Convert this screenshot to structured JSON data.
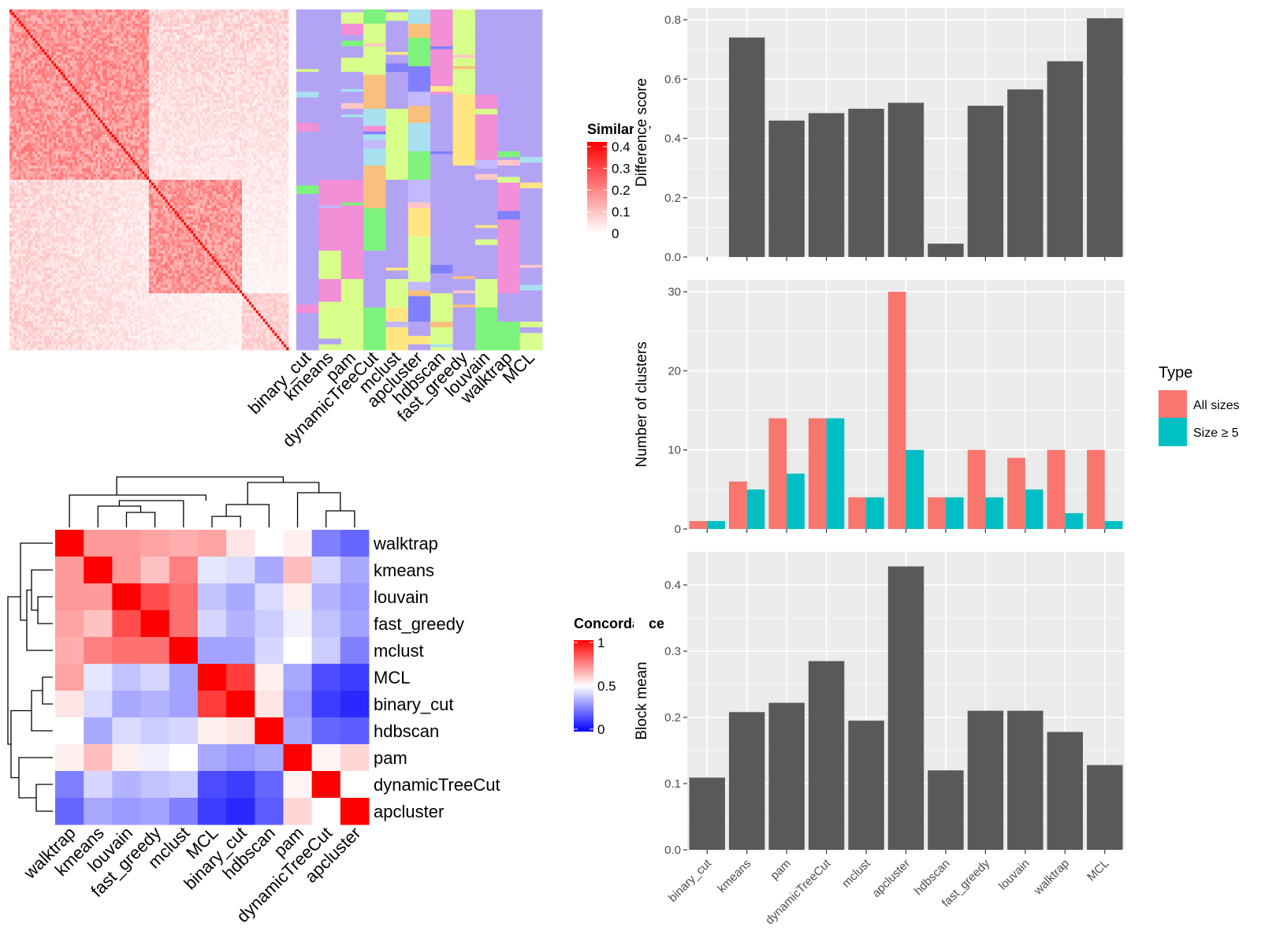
{
  "colors": {
    "sim_high": "#ff0000",
    "sim_low": "#ffffff",
    "conc_high": "#ff0000",
    "conc_mid": "#ffffff",
    "conc_low": "#0000ff",
    "bar": "#595959",
    "panel_bg": "#ebebeb",
    "grid": "#ffffff",
    "type_all": "#f8766d",
    "type_size5": "#00bfc4",
    "class_palette": [
      "#b3a3f5",
      "#f28fd7",
      "#d8ff8c",
      "#7df27d",
      "#f7c07c",
      "#a8e0f0",
      "#8080ff",
      "#ffe680",
      "#c4b8ff",
      "#ffc6c6"
    ]
  },
  "similarity_heatmap": {
    "legend_title": "Similarity",
    "legend_ticks": [
      "0",
      "0.1",
      "0.2",
      "0.3",
      "0.4"
    ],
    "method_labels": [
      "binary_cut",
      "kmeans",
      "pam",
      "dynamicTreeCut",
      "mclust",
      "apcluster",
      "hdbscan",
      "fast_greedy",
      "louvain",
      "walktrap",
      "MCL"
    ]
  },
  "concordance_heatmap": {
    "legend_title": "Concordance",
    "legend_ticks": [
      "0",
      "0.5",
      "1"
    ],
    "rows": [
      "walktrap",
      "kmeans",
      "louvain",
      "fast_greedy",
      "mclust",
      "MCL",
      "binary_cut",
      "hdbscan",
      "pam",
      "dynamicTreeCut",
      "apcluster"
    ],
    "cols": [
      "walktrap",
      "kmeans",
      "louvain",
      "fast_greedy",
      "mclust",
      "MCL",
      "binary_cut",
      "hdbscan",
      "pam",
      "dynamicTreeCut",
      "apcluster"
    ],
    "values": [
      [
        1.0,
        0.7,
        0.7,
        0.68,
        0.66,
        0.68,
        0.55,
        0.5,
        0.53,
        0.25,
        0.2
      ],
      [
        0.7,
        1.0,
        0.7,
        0.62,
        0.75,
        0.45,
        0.43,
        0.33,
        0.63,
        0.42,
        0.33
      ],
      [
        0.7,
        0.7,
        1.0,
        0.85,
        0.78,
        0.38,
        0.33,
        0.43,
        0.53,
        0.35,
        0.3
      ],
      [
        0.68,
        0.62,
        0.85,
        1.0,
        0.78,
        0.42,
        0.35,
        0.4,
        0.47,
        0.38,
        0.32
      ],
      [
        0.66,
        0.75,
        0.78,
        0.78,
        1.0,
        0.32,
        0.32,
        0.42,
        0.5,
        0.4,
        0.25
      ],
      [
        0.68,
        0.45,
        0.38,
        0.42,
        0.32,
        1.0,
        0.88,
        0.53,
        0.33,
        0.15,
        0.12
      ],
      [
        0.55,
        0.43,
        0.33,
        0.35,
        0.32,
        0.88,
        1.0,
        0.55,
        0.3,
        0.12,
        0.08
      ],
      [
        0.5,
        0.33,
        0.43,
        0.4,
        0.42,
        0.53,
        0.55,
        1.0,
        0.33,
        0.2,
        0.18
      ],
      [
        0.53,
        0.63,
        0.53,
        0.47,
        0.5,
        0.33,
        0.3,
        0.33,
        1.0,
        0.52,
        0.58
      ],
      [
        0.25,
        0.42,
        0.35,
        0.38,
        0.4,
        0.15,
        0.12,
        0.2,
        0.52,
        1.0,
        0.5
      ],
      [
        0.2,
        0.33,
        0.3,
        0.32,
        0.25,
        0.12,
        0.08,
        0.18,
        0.58,
        0.5,
        1.0
      ]
    ]
  },
  "chart_data": [
    {
      "type": "bar",
      "categories": [
        "binary_cut",
        "kmeans",
        "pam",
        "dynamicTreeCut",
        "mclust",
        "apcluster",
        "hdbscan",
        "fast_greedy",
        "louvain",
        "walktrap",
        "MCL"
      ],
      "values": [
        0.0,
        0.74,
        0.46,
        0.485,
        0.5,
        0.52,
        0.045,
        0.51,
        0.565,
        0.66,
        0.805
      ],
      "xlabel": "",
      "ylabel": "Difference score",
      "ylim": [
        0,
        0.84
      ],
      "yticks": [
        "0.0",
        "0.2",
        "0.4",
        "0.6",
        "0.8"
      ],
      "grid": true
    },
    {
      "type": "bar",
      "categories": [
        "binary_cut",
        "kmeans",
        "pam",
        "dynamicTreeCut",
        "mclust",
        "apcluster",
        "hdbscan",
        "fast_greedy",
        "louvain",
        "walktrap",
        "MCL"
      ],
      "series": [
        {
          "name": "All sizes",
          "values": [
            1,
            6,
            14,
            14,
            4,
            30,
            4,
            10,
            9,
            10,
            10
          ]
        },
        {
          "name": "Size ≥ 5",
          "values": [
            1,
            5,
            7,
            14,
            4,
            10,
            4,
            4,
            5,
            2,
            1
          ]
        }
      ],
      "xlabel": "",
      "ylabel": "Number of clusters",
      "ylim": [
        0,
        31.5
      ],
      "yticks": [
        "0",
        "10",
        "20",
        "30"
      ],
      "legend_title": "Type",
      "legend_position": "right",
      "grid": true
    },
    {
      "type": "bar",
      "categories": [
        "binary_cut",
        "kmeans",
        "pam",
        "dynamicTreeCut",
        "mclust",
        "apcluster",
        "hdbscan",
        "fast_greedy",
        "louvain",
        "walktrap",
        "MCL"
      ],
      "values": [
        0.109,
        0.208,
        0.222,
        0.285,
        0.195,
        0.428,
        0.12,
        0.21,
        0.21,
        0.178,
        0.128
      ],
      "xlabel": "",
      "ylabel": "Block mean",
      "ylim": [
        0,
        0.45
      ],
      "yticks": [
        "0.0",
        "0.1",
        "0.2",
        "0.3",
        "0.4"
      ],
      "grid": true
    }
  ]
}
